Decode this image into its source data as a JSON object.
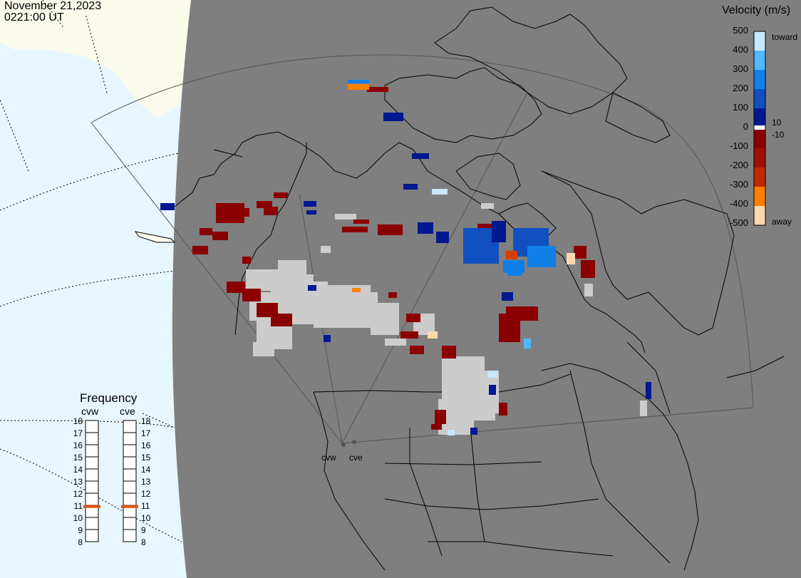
{
  "header": {
    "date": "November 21,2023",
    "time": "0221:00 UT"
  },
  "colorbar": {
    "title": "Velocity (m/s)",
    "ticks": [
      "500",
      "400",
      "300",
      "200",
      "100",
      "0",
      "-100",
      "-200",
      "-300",
      "-400",
      "-500"
    ],
    "small_labels": [
      "10",
      "-10"
    ],
    "toward_label": "toward",
    "away_label": "away",
    "colors": [
      "#c8e8ff",
      "#50b8ff",
      "#1080e8",
      "#1050c0",
      "#001890",
      "#ffffff",
      "#8a0000",
      "#b02000",
      "#d84000",
      "#ff8000",
      "#ffd8b0"
    ]
  },
  "radars": [
    {
      "code": "cvw",
      "frequency_mhz": 10.9
    },
    {
      "code": "cve",
      "frequency_mhz": 10.9
    }
  ],
  "frequency": {
    "title": "Frequency",
    "scale": [
      "18",
      "17",
      "16",
      "15",
      "14",
      "13",
      "12",
      "11",
      "10",
      "9",
      "8"
    ]
  },
  "colors": {
    "land": "#7f7f7f",
    "ocean": "#e8f6ff",
    "ice": "#fbfbec",
    "ground_scatter": "#cccccc",
    "frequency_marker": "#e05010"
  }
}
